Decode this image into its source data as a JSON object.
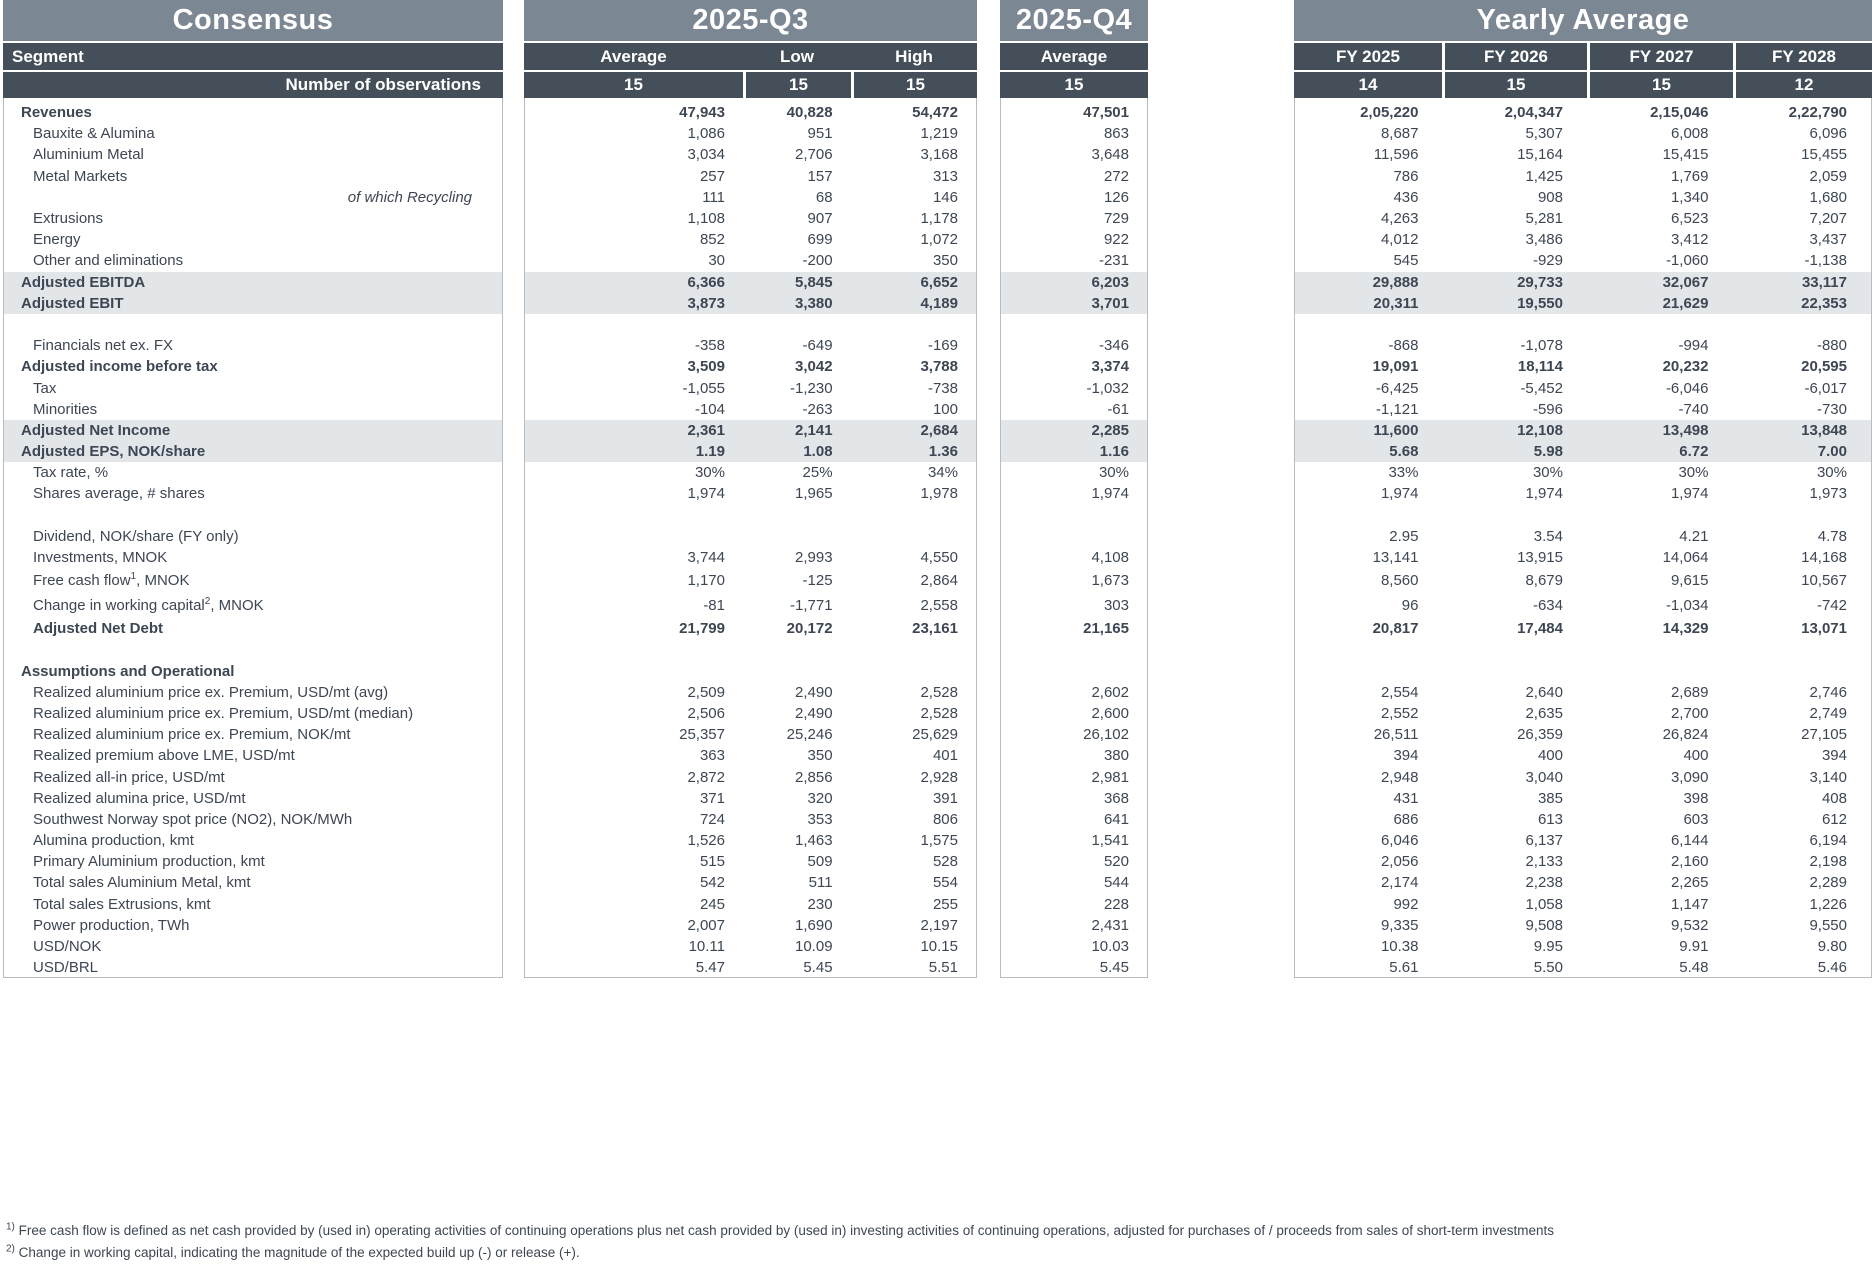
{
  "colors": {
    "title_band": "#7C8794",
    "header_band": "#454F59",
    "shaded_row": "#E3E6E9",
    "body_text": "#3D4653",
    "panel_border": "#B7BCC2",
    "header_text": "#FFFFFF"
  },
  "panels": {
    "consensus": {
      "title": "Consensus",
      "header1": "Segment",
      "header2": "Number of observations"
    },
    "q3": {
      "title": "2025-Q3",
      "columns": [
        "Average",
        "Low",
        "High"
      ],
      "observations": [
        "15",
        "15",
        "15"
      ]
    },
    "q4": {
      "title": "2025-Q4",
      "columns": [
        "Average"
      ],
      "observations": [
        "15"
      ]
    },
    "yearly": {
      "title": "Yearly Average",
      "columns": [
        "FY 2025",
        "FY 2026",
        "FY 2027",
        "FY 2028"
      ],
      "observations": [
        "14",
        "15",
        "15",
        "12"
      ]
    }
  },
  "rows": [
    {
      "label": "Revenues",
      "bold": true,
      "indent": 0,
      "q3": [
        "47,943",
        "40,828",
        "54,472"
      ],
      "q4": "47,501",
      "fy": [
        "2,05,220",
        "2,04,347",
        "2,15,046",
        "2,22,790"
      ]
    },
    {
      "label": "Bauxite & Alumina",
      "indent": 1,
      "q3": [
        "1,086",
        "951",
        "1,219"
      ],
      "q4": "863",
      "fy": [
        "8,687",
        "5,307",
        "6,008",
        "6,096"
      ]
    },
    {
      "label": "Aluminium Metal",
      "indent": 1,
      "q3": [
        "3,034",
        "2,706",
        "3,168"
      ],
      "q4": "3,648",
      "fy": [
        "11,596",
        "15,164",
        "15,415",
        "15,455"
      ]
    },
    {
      "label": "Metal Markets",
      "indent": 1,
      "q3": [
        "257",
        "157",
        "313"
      ],
      "q4": "272",
      "fy": [
        "786",
        "1,425",
        "1,769",
        "2,059"
      ]
    },
    {
      "label": "of which Recycling",
      "italic_right": true,
      "q3": [
        "111",
        "68",
        "146"
      ],
      "q4": "126",
      "fy": [
        "436",
        "908",
        "1,340",
        "1,680"
      ]
    },
    {
      "label": "Extrusions",
      "indent": 1,
      "q3": [
        "1,108",
        "907",
        "1,178"
      ],
      "q4": "729",
      "fy": [
        "4,263",
        "5,281",
        "6,523",
        "7,207"
      ]
    },
    {
      "label": "Energy",
      "indent": 1,
      "q3": [
        "852",
        "699",
        "1,072"
      ],
      "q4": "922",
      "fy": [
        "4,012",
        "3,486",
        "3,412",
        "3,437"
      ]
    },
    {
      "label": "Other and eliminations",
      "indent": 1,
      "q3": [
        "30",
        "-200",
        "350"
      ],
      "q4": "-231",
      "fy": [
        "545",
        "-929",
        "-1,060",
        "-1,138"
      ]
    },
    {
      "label": "Adjusted EBITDA",
      "bold": true,
      "shaded": true,
      "indent": 0,
      "q3": [
        "6,366",
        "5,845",
        "6,652"
      ],
      "q4": "6,203",
      "fy": [
        "29,888",
        "29,733",
        "32,067",
        "33,117"
      ]
    },
    {
      "label": "Adjusted EBIT",
      "bold": true,
      "shaded": true,
      "indent": 0,
      "q3": [
        "3,873",
        "3,380",
        "4,189"
      ],
      "q4": "3,701",
      "fy": [
        "20,311",
        "19,550",
        "21,629",
        "22,353"
      ]
    },
    {
      "blank": true
    },
    {
      "label": "Financials net ex. FX",
      "indent": 1,
      "q3": [
        "-358",
        "-649",
        "-169"
      ],
      "q4": "-346",
      "fy": [
        "-868",
        "-1,078",
        "-994",
        "-880"
      ]
    },
    {
      "label": "Adjusted income before tax",
      "bold": true,
      "indent": 0,
      "q3": [
        "3,509",
        "3,042",
        "3,788"
      ],
      "q4": "3,374",
      "fy": [
        "19,091",
        "18,114",
        "20,232",
        "20,595"
      ]
    },
    {
      "label": "Tax",
      "indent": 1,
      "q3": [
        "-1,055",
        "-1,230",
        "-738"
      ],
      "q4": "-1,032",
      "fy": [
        "-6,425",
        "-5,452",
        "-6,046",
        "-6,017"
      ]
    },
    {
      "label": "Minorities",
      "indent": 1,
      "q3": [
        "-104",
        "-263",
        "100"
      ],
      "q4": "-61",
      "fy": [
        "-1,121",
        "-596",
        "-740",
        "-730"
      ]
    },
    {
      "label": "Adjusted Net Income",
      "bold": true,
      "shaded": true,
      "indent": 0,
      "q3": [
        "2,361",
        "2,141",
        "2,684"
      ],
      "q4": "2,285",
      "fy": [
        "11,600",
        "12,108",
        "13,498",
        "13,848"
      ]
    },
    {
      "label": "Adjusted EPS, NOK/share",
      "bold": true,
      "shaded": true,
      "indent": 0,
      "q3": [
        "1.19",
        "1.08",
        "1.36"
      ],
      "q4": "1.16",
      "fy": [
        "5.68",
        "5.98",
        "6.72",
        "7.00"
      ]
    },
    {
      "label": "Tax rate, %",
      "indent": 1,
      "q3": [
        "30%",
        "25%",
        "34%"
      ],
      "q4": "30%",
      "fy": [
        "33%",
        "30%",
        "30%",
        "30%"
      ]
    },
    {
      "label": "Shares average, # shares",
      "indent": 1,
      "q3": [
        "1,974",
        "1,965",
        "1,978"
      ],
      "q4": "1,974",
      "fy": [
        "1,974",
        "1,974",
        "1,974",
        "1,973"
      ]
    },
    {
      "blank": true
    },
    {
      "label": "Dividend, NOK/share (FY only)",
      "indent": 1,
      "q3": [
        "",
        "",
        ""
      ],
      "q4": "",
      "fy": [
        "2.95",
        "3.54",
        "4.21",
        "4.78"
      ]
    },
    {
      "label": "Investments, MNOK",
      "indent": 1,
      "q3": [
        "3,744",
        "2,993",
        "4,550"
      ],
      "q4": "4,108",
      "fy": [
        "13,141",
        "13,915",
        "14,064",
        "14,168"
      ]
    },
    {
      "label": "Free cash flow",
      "sup": "1",
      "label2": ", MNOK",
      "indent": 1,
      "tall": true,
      "q3": [
        "1,170",
        "-125",
        "2,864"
      ],
      "q4": "1,673",
      "fy": [
        "8,560",
        "8,679",
        "9,615",
        "10,567"
      ]
    },
    {
      "label": "Change in working capital",
      "sup": "2",
      "label2": ", MNOK",
      "indent": 1,
      "tall": true,
      "q3": [
        "-81",
        "-1,771",
        "2,558"
      ],
      "q4": "303",
      "fy": [
        "96",
        "-634",
        "-1,034",
        "-742"
      ]
    },
    {
      "label": "Adjusted Net Debt",
      "bold": true,
      "indent": 1,
      "q3": [
        "21,799",
        "20,172",
        "23,161"
      ],
      "q4": "21,165",
      "fy": [
        "20,817",
        "17,484",
        "14,329",
        "13,071"
      ]
    },
    {
      "blank": true
    },
    {
      "label": "Assumptions and Operational",
      "bold": true,
      "indent": 0
    },
    {
      "label": "Realized aluminium price ex. Premium, USD/mt (avg)",
      "indent": 1,
      "q3": [
        "2,509",
        "2,490",
        "2,528"
      ],
      "q4": "2,602",
      "fy": [
        "2,554",
        "2,640",
        "2,689",
        "2,746"
      ]
    },
    {
      "label": "Realized aluminium price ex. Premium, USD/mt (median)",
      "indent": 1,
      "q3": [
        "2,506",
        "2,490",
        "2,528"
      ],
      "q4": "2,600",
      "fy": [
        "2,552",
        "2,635",
        "2,700",
        "2,749"
      ]
    },
    {
      "label": "Realized aluminium price ex. Premium, NOK/mt",
      "indent": 1,
      "q3": [
        "25,357",
        "25,246",
        "25,629"
      ],
      "q4": "26,102",
      "fy": [
        "26,511",
        "26,359",
        "26,824",
        "27,105"
      ]
    },
    {
      "label": "Realized premium above LME, USD/mt",
      "indent": 1,
      "q3": [
        "363",
        "350",
        "401"
      ],
      "q4": "380",
      "fy": [
        "394",
        "400",
        "400",
        "394"
      ]
    },
    {
      "label": "Realized all-in price, USD/mt",
      "indent": 1,
      "q3": [
        "2,872",
        "2,856",
        "2,928"
      ],
      "q4": "2,981",
      "fy": [
        "2,948",
        "3,040",
        "3,090",
        "3,140"
      ]
    },
    {
      "label": "Realized alumina price, USD/mt",
      "indent": 1,
      "q3": [
        "371",
        "320",
        "391"
      ],
      "q4": "368",
      "fy": [
        "431",
        "385",
        "398",
        "408"
      ]
    },
    {
      "label": "Southwest Norway spot price (NO2), NOK/MWh",
      "indent": 1,
      "q3": [
        "724",
        "353",
        "806"
      ],
      "q4": "641",
      "fy": [
        "686",
        "613",
        "603",
        "612"
      ]
    },
    {
      "label": "Alumina production, kmt",
      "indent": 1,
      "q3": [
        "1,526",
        "1,463",
        "1,575"
      ],
      "q4": "1,541",
      "fy": [
        "6,046",
        "6,137",
        "6,144",
        "6,194"
      ]
    },
    {
      "label": "Primary Aluminium production, kmt",
      "indent": 1,
      "q3": [
        "515",
        "509",
        "528"
      ],
      "q4": "520",
      "fy": [
        "2,056",
        "2,133",
        "2,160",
        "2,198"
      ]
    },
    {
      "label": "Total sales Aluminium Metal, kmt",
      "indent": 1,
      "q3": [
        "542",
        "511",
        "554"
      ],
      "q4": "544",
      "fy": [
        "2,174",
        "2,238",
        "2,265",
        "2,289"
      ]
    },
    {
      "label": "Total sales Extrusions, kmt",
      "indent": 1,
      "q3": [
        "245",
        "230",
        "255"
      ],
      "q4": "228",
      "fy": [
        "992",
        "1,058",
        "1,147",
        "1,226"
      ]
    },
    {
      "label": "Power production, TWh",
      "indent": 1,
      "q3": [
        "2,007",
        "1,690",
        "2,197"
      ],
      "q4": "2,431",
      "fy": [
        "9,335",
        "9,508",
        "9,532",
        "9,550"
      ]
    },
    {
      "label": "USD/NOK",
      "indent": 1,
      "q3": [
        "10.11",
        "10.09",
        "10.15"
      ],
      "q4": "10.03",
      "fy": [
        "10.38",
        "9.95",
        "9.91",
        "9.80"
      ]
    },
    {
      "label": "USD/BRL",
      "indent": 1,
      "q3": [
        "5.47",
        "5.45",
        "5.51"
      ],
      "q4": "5.45",
      "fy": [
        "5.61",
        "5.50",
        "5.48",
        "5.46"
      ]
    }
  ],
  "footnotes": [
    {
      "sup": "1)",
      "text": "Free cash flow is defined as net cash provided by (used in) operating activities of continuing operations plus net cash provided by (used in) investing activities of continuing operations, adjusted for purchases of / proceeds from sales of short-term investments"
    },
    {
      "sup": "2)",
      "text": "Change in working capital, indicating the magnitude of the expected build up (-) or release (+)."
    }
  ]
}
